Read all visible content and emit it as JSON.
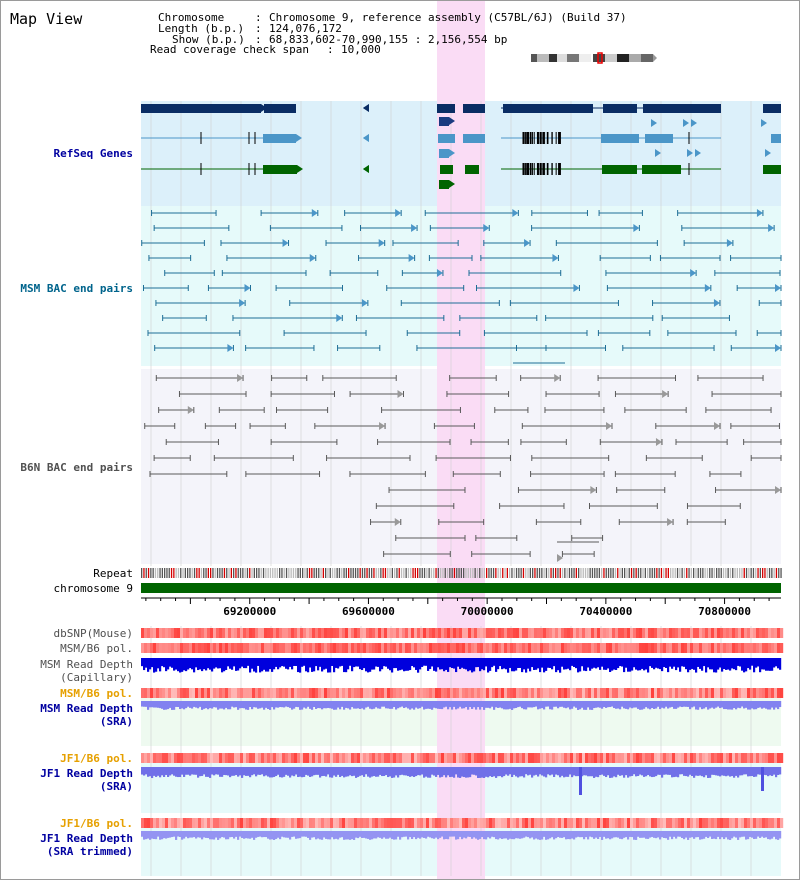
{
  "title": "Map View",
  "info": {
    "chrom_key": "Chromosome",
    "chrom_val": "Chromosome 9, reference assembly (C57BL/6J) (Build 37)",
    "length_key": "Length (b.p.)",
    "length_val": "124,076,172",
    "show_key": "Show (b.p.)",
    "show_val": "68,833,602-70,990,155 : 2,156,554 bp",
    "span_key": "Read coverage check span",
    "span_val": "10,000"
  },
  "tracks": {
    "refseq": "RefSeq Genes",
    "msm_bac": "MSM BAC end pairs",
    "b6n_bac": "B6N BAC end pairs",
    "repeat": "Repeat",
    "chromosome": "chromosome 9",
    "dbsnp": "dbSNP(Mouse)",
    "msm_pol1": "MSM/B6 pol.",
    "msm_cap_1": "MSM Read Depth",
    "msm_cap_2": "(Capillary)",
    "msm_pol2": "MSM/B6 pol.",
    "msm_sra_1": "MSM Read Depth",
    "msm_sra_2": "(SRA)",
    "jf1_pol1": "JF1/B6 pol.",
    "jf1_sra_1": "JF1 Read Depth",
    "jf1_sra_2": "(SRA)",
    "jf1_pol2": "JF1/B6 pol.",
    "jf1_trim_1": "JF1 Read Depth",
    "jf1_trim_2": "(SRA trimmed)"
  },
  "axis": {
    "range_bp": [
      68833602,
      70990155
    ],
    "ticks": [
      "69200000",
      "69600000",
      "70000000",
      "70400000",
      "70800000"
    ]
  },
  "colors": {
    "highlight": "#fadcf5",
    "refseq_bg": "#dcf0fa",
    "msm_bg": "#e6fafa",
    "b6n_bg": "#f4f4fa",
    "gene_dark": "#0a2d64",
    "gene_light": "#4b96c8",
    "gene_green": "#006400",
    "msm_line": "#1e6e96",
    "b6n_line": "#5a5a5a",
    "depth_blue": "#0000e6",
    "depth_sra": "#8282f0",
    "label_blue": "#0000a0",
    "label_teal": "#00648c",
    "label_orange": "#e6a000"
  }
}
